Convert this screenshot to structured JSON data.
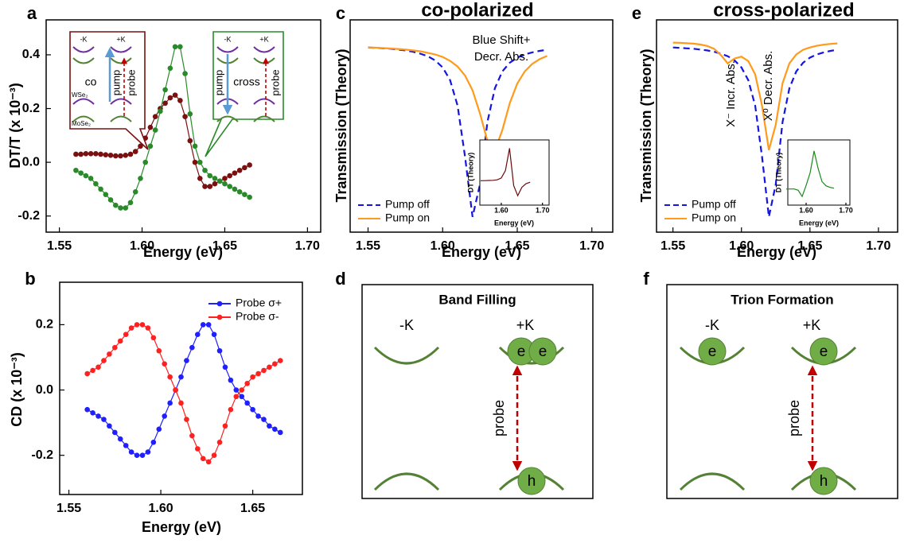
{
  "chart_data": [
    {
      "type": "line",
      "panel": "a",
      "markers": true,
      "xlabel": "Energy (eV)",
      "ylabel": "DT/T (x 10⁻³)",
      "xlim": [
        1.542,
        1.708
      ],
      "ylim": [
        -0.26,
        0.53
      ],
      "xticks": [
        1.55,
        {
          "value": 1.6,
          "label": "1.60"
        },
        1.65,
        {
          "value": 1.7,
          "label": "1.70"
        }
      ],
      "yticks": [
        -0.2,
        {
          "value": 0,
          "label": "0.0"
        },
        0.2,
        0.4
      ],
      "x": [
        1.56,
        1.563,
        1.566,
        1.569,
        1.572,
        1.575,
        1.578,
        1.581,
        1.584,
        1.587,
        1.59,
        1.593,
        1.596,
        1.599,
        1.602,
        1.605,
        1.608,
        1.611,
        1.614,
        1.617,
        1.62,
        1.623,
        1.626,
        1.629,
        1.632,
        1.635,
        1.638,
        1.641,
        1.644,
        1.647,
        1.65,
        1.653,
        1.656,
        1.659,
        1.662,
        1.665
      ],
      "series": [
        {
          "color": "#7b1010",
          "values": [
            0.03,
            0.03,
            0.032,
            0.032,
            0.032,
            0.03,
            0.028,
            0.026,
            0.024,
            0.024,
            0.026,
            0.03,
            0.04,
            0.06,
            0.09,
            0.13,
            0.17,
            0.2,
            0.22,
            0.24,
            0.25,
            0.23,
            0.17,
            0.08,
            0.0,
            -0.06,
            -0.09,
            -0.09,
            -0.08,
            -0.07,
            -0.06,
            -0.05,
            -0.04,
            -0.03,
            -0.02,
            -0.01
          ]
        },
        {
          "color": "#2a8a2a",
          "values": [
            -0.03,
            -0.04,
            -0.05,
            -0.06,
            -0.08,
            -0.1,
            -0.12,
            -0.14,
            -0.16,
            -0.17,
            -0.17,
            -0.15,
            -0.11,
            -0.06,
            0.0,
            0.06,
            0.12,
            0.19,
            0.27,
            0.35,
            0.43,
            0.43,
            0.33,
            0.18,
            0.06,
            0.0,
            -0.03,
            -0.05,
            -0.06,
            -0.07,
            -0.08,
            -0.09,
            -0.1,
            -0.11,
            -0.12,
            -0.13
          ]
        }
      ],
      "callouts": [
        {
          "color": "#7b1010",
          "labels": [
            "-K",
            "+K",
            "co",
            "pump",
            "probe",
            "WSe₂",
            "MoSe₂"
          ]
        },
        {
          "color": "#2a8a2a",
          "labels": [
            "-K",
            "+K",
            "pump",
            "cross",
            "probe"
          ]
        }
      ]
    },
    {
      "type": "line",
      "panel": "b",
      "markers": true,
      "legend": "upper right",
      "xlabel": "Energy (eV)",
      "ylabel": "CD (x 10⁻³)",
      "xlim": [
        1.545,
        1.677
      ],
      "ylim": [
        -0.32,
        0.33
      ],
      "xticks": [
        1.55,
        {
          "value": 1.6,
          "label": "1.60"
        },
        1.65
      ],
      "yticks": [
        -0.2,
        {
          "value": 0,
          "label": "0.0"
        },
        0.2
      ],
      "x": [
        1.56,
        1.563,
        1.566,
        1.569,
        1.572,
        1.575,
        1.578,
        1.581,
        1.584,
        1.587,
        1.59,
        1.593,
        1.596,
        1.599,
        1.602,
        1.605,
        1.608,
        1.611,
        1.614,
        1.617,
        1.62,
        1.623,
        1.626,
        1.629,
        1.632,
        1.635,
        1.638,
        1.641,
        1.644,
        1.647,
        1.65,
        1.653,
        1.656,
        1.659,
        1.662,
        1.665
      ],
      "series": [
        {
          "name": "Probe σ+",
          "color": "#1f1fff",
          "values": [
            -0.06,
            -0.07,
            -0.08,
            -0.09,
            -0.11,
            -0.13,
            -0.15,
            -0.17,
            -0.19,
            -0.2,
            -0.2,
            -0.19,
            -0.16,
            -0.12,
            -0.08,
            -0.04,
            0.0,
            0.04,
            0.09,
            0.13,
            0.17,
            0.2,
            0.2,
            0.17,
            0.12,
            0.07,
            0.03,
            0.0,
            -0.02,
            -0.04,
            -0.06,
            -0.08,
            -0.09,
            -0.11,
            -0.12,
            -0.13
          ]
        },
        {
          "name": "Probe σ-",
          "color": "#ff2020",
          "values": [
            0.05,
            0.06,
            0.07,
            0.09,
            0.11,
            0.13,
            0.15,
            0.17,
            0.19,
            0.2,
            0.2,
            0.19,
            0.16,
            0.12,
            0.08,
            0.04,
            0.0,
            -0.04,
            -0.09,
            -0.14,
            -0.18,
            -0.21,
            -0.22,
            -0.2,
            -0.16,
            -0.11,
            -0.06,
            -0.02,
            0.0,
            0.02,
            0.04,
            0.05,
            0.06,
            0.07,
            0.08,
            0.09
          ]
        }
      ]
    },
    {
      "type": "line",
      "panel": "c",
      "title": "co-polarized",
      "legend": "lower left",
      "xlabel": "Energy (eV)",
      "ylabel": "Transmission (Theory)",
      "xlim": [
        1.538,
        1.714
      ],
      "ylim": [
        0,
        1
      ],
      "xticks": [
        1.55,
        {
          "value": 1.6,
          "label": "1.60"
        },
        1.65,
        {
          "value": 1.7,
          "label": "1.70"
        }
      ],
      "x": [
        1.55,
        1.555,
        1.56,
        1.565,
        1.57,
        1.575,
        1.58,
        1.585,
        1.59,
        1.595,
        1.6,
        1.605,
        1.61,
        1.615,
        1.62,
        1.625,
        1.63,
        1.635,
        1.64,
        1.645,
        1.65,
        1.655,
        1.66,
        1.665,
        1.67
      ],
      "series": [
        {
          "name": "Pump off",
          "color": "#1515e0",
          "linestyle": "dashed",
          "values": [
            0.87,
            0.868,
            0.866,
            0.864,
            0.86,
            0.856,
            0.85,
            0.841,
            0.829,
            0.809,
            0.776,
            0.716,
            0.596,
            0.355,
            0.072,
            0.224,
            0.519,
            0.678,
            0.757,
            0.798,
            0.822,
            0.837,
            0.847,
            0.854,
            0.859
          ]
        },
        {
          "name": "Pump on",
          "color": "#ff9a1a",
          "values": [
            0.87,
            0.869,
            0.867,
            0.865,
            0.863,
            0.86,
            0.856,
            0.852,
            0.845,
            0.837,
            0.825,
            0.807,
            0.78,
            0.738,
            0.668,
            0.56,
            0.43,
            0.384,
            0.48,
            0.608,
            0.7,
            0.757,
            0.792,
            0.815,
            0.83
          ]
        }
      ],
      "annotations": [
        "Blue Shift+",
        "Decr. Abs."
      ]
    },
    {
      "type": "line",
      "xlabel": "Energy (eV)",
      "ylabel": "DT (Theory)",
      "xlim": [
        1.548,
        1.716
      ],
      "ylim": [
        -0.45,
        0.75
      ],
      "xticks": [
        {
          "value": 1.6,
          "label": "1.60"
        },
        {
          "value": 1.7,
          "label": "1.70"
        }
      ],
      "x": [
        1.55,
        1.56,
        1.57,
        1.58,
        1.59,
        1.6,
        1.61,
        1.62,
        1.63,
        1.64,
        1.65,
        1.66,
        1.67
      ],
      "series": [
        {
          "color": "#6b0a0a",
          "values": [
            0,
            0.001,
            0.003,
            0.006,
            0.016,
            0.049,
            0.184,
            0.596,
            -0.089,
            -0.277,
            -0.122,
            -0.055,
            -0.029
          ]
        }
      ]
    },
    {
      "type": "line",
      "panel": "e",
      "title": "cross-polarized",
      "legend": "lower left",
      "xlabel": "Energy (eV)",
      "ylabel": "Transmission (Theory)",
      "xlim": [
        1.538,
        1.714
      ],
      "ylim": [
        0,
        1
      ],
      "xticks": [
        1.55,
        {
          "value": 1.6,
          "label": "1.60"
        },
        1.65,
        {
          "value": 1.7,
          "label": "1.70"
        }
      ],
      "x": [
        1.55,
        1.555,
        1.56,
        1.565,
        1.57,
        1.575,
        1.58,
        1.585,
        1.59,
        1.595,
        1.6,
        1.605,
        1.61,
        1.615,
        1.62,
        1.625,
        1.63,
        1.635,
        1.64,
        1.645,
        1.65,
        1.655,
        1.66,
        1.665,
        1.67
      ],
      "series": [
        {
          "name": "Pump off",
          "color": "#1515e0",
          "linestyle": "dashed",
          "values": [
            0.87,
            0.868,
            0.866,
            0.864,
            0.86,
            0.856,
            0.85,
            0.841,
            0.829,
            0.809,
            0.776,
            0.716,
            0.596,
            0.355,
            0.072,
            0.224,
            0.519,
            0.678,
            0.757,
            0.798,
            0.822,
            0.837,
            0.847,
            0.854,
            0.859
          ]
        },
        {
          "name": "Pump on",
          "color": "#ff9a1a",
          "values": [
            0.893,
            0.892,
            0.89,
            0.888,
            0.884,
            0.877,
            0.864,
            0.834,
            0.795,
            0.818,
            0.827,
            0.806,
            0.743,
            0.596,
            0.387,
            0.506,
            0.702,
            0.795,
            0.837,
            0.859,
            0.87,
            0.878,
            0.883,
            0.887,
            0.889
          ]
        }
      ],
      "annotations": [
        "X⁻ Incr. Abs.",
        "X⁰ Decr. Abs."
      ]
    },
    {
      "type": "line",
      "xlabel": "Energy (eV)",
      "ylabel": "DT (Theory)",
      "xlim": [
        1.554,
        1.71
      ],
      "ylim": [
        -0.1,
        0.4
      ],
      "xticks": [
        {
          "value": 1.6,
          "label": "1.60"
        },
        {
          "value": 1.7,
          "label": "1.70"
        }
      ],
      "x": [
        1.55,
        1.56,
        1.57,
        1.58,
        1.59,
        1.6,
        1.61,
        1.62,
        1.63,
        1.64,
        1.65,
        1.66,
        1.67
      ],
      "series": [
        {
          "color": "#1a8a1a",
          "values": [
            0.023,
            0.024,
            0.024,
            0.014,
            -0.034,
            0.051,
            0.147,
            0.315,
            0.183,
            0.08,
            0.048,
            0.036,
            0.03
          ]
        }
      ]
    }
  ],
  "diagrams": [
    {
      "panel": "d",
      "title": "Band Filling",
      "valleys": [
        "-K",
        "+K"
      ],
      "carriers": [
        "e",
        "e",
        "h"
      ],
      "arrow_label": "probe"
    },
    {
      "panel": "f",
      "title": "Trion Formation",
      "valleys": [
        "-K",
        "+K"
      ],
      "carriers": [
        "e",
        "e",
        "h"
      ],
      "arrow_label": "probe"
    }
  ]
}
